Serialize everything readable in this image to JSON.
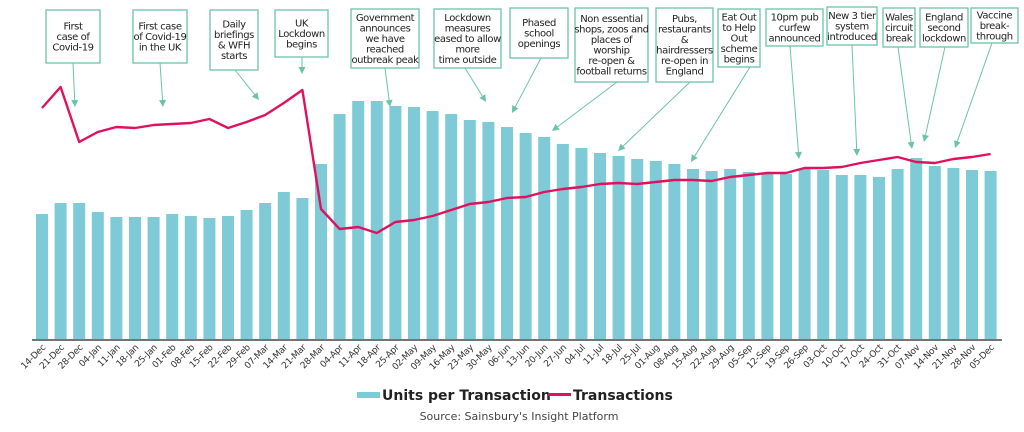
{
  "chart_data": {
    "type": "bar",
    "title": "",
    "xlabel": "",
    "ylabel": "",
    "grid": false,
    "legend_position": "bottom-center",
    "categories": [
      "14-Dec",
      "21-Dec",
      "28-Dec",
      "04-Jan",
      "11-Jan",
      "18-Jan",
      "25-Jan",
      "01-Feb",
      "08-Feb",
      "15-Feb",
      "22-Feb",
      "29-Feb",
      "07-Mar",
      "14-Mar",
      "21-Mar",
      "28-Mar",
      "04-Apr",
      "11-Apr",
      "18-Apr",
      "25-Apr",
      "02-May",
      "09-May",
      "16-May",
      "23-May",
      "30-May",
      "06-Jun",
      "13-Jun",
      "20-Jun",
      "27-Jun",
      "04-Jul",
      "11-Jul",
      "18-Jul",
      "25-Jul",
      "01-Aug",
      "08-Aug",
      "15-Aug",
      "22-Aug",
      "29-Aug",
      "05-Sep",
      "12-Sep",
      "19-Sep",
      "26-Sep",
      "03-Oct",
      "10-Oct",
      "17-Oct",
      "24-Oct",
      "31-Oct",
      "07-Nov",
      "14-Nov",
      "21-Nov",
      "28-Nov",
      "05-Dec"
    ],
    "series": [
      {
        "name": "Units per Transaction",
        "type": "bar",
        "color": "#7ecad6",
        "values": [
          125,
          136,
          136,
          127,
          122,
          122,
          122,
          125,
          123,
          121,
          123,
          129,
          136,
          147,
          141,
          175,
          225,
          238,
          238,
          233,
          232,
          228,
          225,
          219,
          217,
          212,
          206,
          202,
          195,
          191,
          186,
          183,
          180,
          178,
          175,
          170,
          168,
          170,
          167,
          165,
          165,
          170,
          169,
          164,
          164,
          162,
          170,
          181,
          173,
          171,
          169,
          168
        ]
      },
      {
        "name": "Transactions",
        "type": "line",
        "color": "#e0115f",
        "values": [
          231,
          252,
          197,
          207,
          212,
          211,
          214,
          215,
          216,
          220,
          211,
          217,
          224,
          236,
          249,
          130,
          110,
          112,
          106,
          117,
          119,
          123,
          129,
          135,
          137,
          141,
          142,
          147,
          150,
          152,
          155,
          156,
          155,
          157,
          159,
          159,
          158,
          162,
          164,
          166,
          166,
          171,
          171,
          172,
          176,
          179,
          182,
          177,
          176,
          180,
          182,
          185
        ]
      }
    ],
    "yrange": [
      0,
      260
    ],
    "annotations": [
      {
        "lines": [
          "First",
          "case of",
          "Covid-19"
        ],
        "target": "28-Dec"
      },
      {
        "lines": [
          "First case",
          "of Covid-19",
          "in the UK"
        ],
        "target": "25-Jan"
      },
      {
        "lines": [
          "Daily",
          "briefings",
          "& WFH",
          "starts"
        ],
        "target": "29-Feb"
      },
      {
        "lines": [
          "UK",
          "Lockdown",
          "begins"
        ],
        "target": "21-Mar"
      },
      {
        "lines": [
          "Government",
          "announces",
          "we have",
          "reached",
          "outbreak peak"
        ],
        "target": "25-Apr"
      },
      {
        "lines": [
          "Lockdown",
          "measures",
          "eased to allow",
          "more",
          "time outside"
        ],
        "target": "30-May"
      },
      {
        "lines": [
          "Phased",
          "school",
          "openings"
        ],
        "target": "06-Jun"
      },
      {
        "lines": [
          "Non essential",
          "shops, zoos and",
          "places of",
          "worship",
          "re-open &",
          "football returns"
        ],
        "target": "20-Jun"
      },
      {
        "lines": [
          "Pubs,",
          "restaurants",
          "&",
          "hairdressers",
          "re-open in",
          "England"
        ],
        "target": "04-Jul"
      },
      {
        "lines": [
          "Eat Out",
          "to Help",
          "Out",
          "scheme",
          "begins"
        ],
        "target": "08-Aug"
      },
      {
        "lines": [
          "10pm pub",
          "curfew",
          "announced"
        ],
        "target": "26-Sep"
      },
      {
        "lines": [
          "New 3 tier",
          "system",
          "introduced"
        ],
        "target": "17-Oct"
      },
      {
        "lines": [
          "Wales",
          "circuit",
          "break"
        ],
        "target": "07-Nov"
      },
      {
        "lines": [
          "England",
          "second",
          "lockdown"
        ],
        "target": "07-Nov"
      },
      {
        "lines": [
          "Vaccine",
          "break-",
          "through"
        ],
        "target": "21-Nov"
      }
    ],
    "annotation_color": "#6cc3a8",
    "source": "Source: Sainsbury's Insight Platform"
  }
}
